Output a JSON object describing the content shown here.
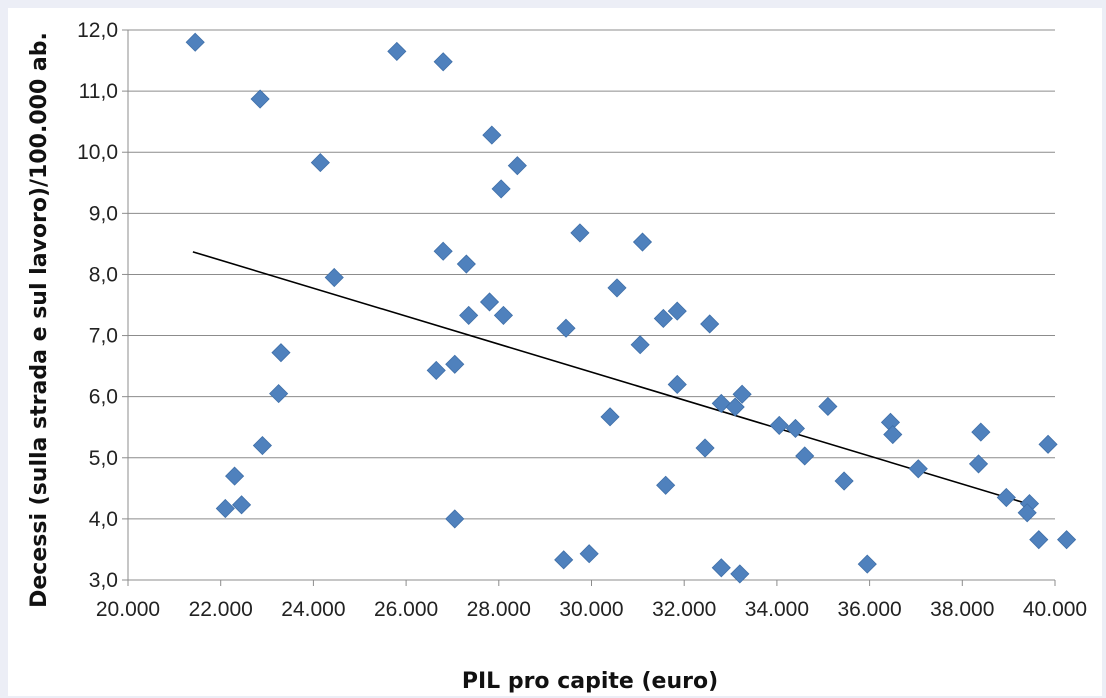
{
  "chart_data": {
    "type": "scatter",
    "xlabel": "PIL pro capite (euro)",
    "ylabel": "Decessi (sulla strada e sul lavoro)/100.000 ab.",
    "xlim": [
      20000,
      40000
    ],
    "ylim": [
      3.0,
      12.0
    ],
    "x_ticks": [
      20000,
      22000,
      24000,
      26000,
      28000,
      30000,
      32000,
      34000,
      36000,
      38000,
      40000
    ],
    "x_tick_labels": [
      "20.000",
      "22.000",
      "24.000",
      "26.000",
      "28.000",
      "30.000",
      "32.000",
      "34.000",
      "36.000",
      "38.000",
      "40.000"
    ],
    "y_ticks": [
      3,
      4,
      5,
      6,
      7,
      8,
      9,
      10,
      11,
      12
    ],
    "y_tick_labels": [
      "3,0",
      "4,0",
      "5,0",
      "6,0",
      "7,0",
      "8,0",
      "9,0",
      "10,0",
      "11,0",
      "12,0"
    ],
    "grid": "horizontal",
    "marker": "diamond",
    "marker_color": "#4f81bd",
    "trendline": {
      "x": [
        21400,
        39400
      ],
      "y": [
        8.37,
        4.25
      ],
      "color": "#000000"
    },
    "points": [
      {
        "x": 21450,
        "y": 11.8
      },
      {
        "x": 22850,
        "y": 10.87
      },
      {
        "x": 24150,
        "y": 9.83
      },
      {
        "x": 24450,
        "y": 7.95
      },
      {
        "x": 23300,
        "y": 6.72
      },
      {
        "x": 23250,
        "y": 6.05
      },
      {
        "x": 22900,
        "y": 5.2
      },
      {
        "x": 22300,
        "y": 4.7
      },
      {
        "x": 22100,
        "y": 4.17
      },
      {
        "x": 22450,
        "y": 4.23
      },
      {
        "x": 25800,
        "y": 11.65
      },
      {
        "x": 26800,
        "y": 11.48
      },
      {
        "x": 27850,
        "y": 10.28
      },
      {
        "x": 28400,
        "y": 9.78
      },
      {
        "x": 28050,
        "y": 9.4
      },
      {
        "x": 26800,
        "y": 8.38
      },
      {
        "x": 27300,
        "y": 8.17
      },
      {
        "x": 27800,
        "y": 7.55
      },
      {
        "x": 27350,
        "y": 7.33
      },
      {
        "x": 28100,
        "y": 7.33
      },
      {
        "x": 26650,
        "y": 6.43
      },
      {
        "x": 27050,
        "y": 6.53
      },
      {
        "x": 27050,
        "y": 4.0
      },
      {
        "x": 29750,
        "y": 8.68
      },
      {
        "x": 31100,
        "y": 8.53
      },
      {
        "x": 30550,
        "y": 7.78
      },
      {
        "x": 29450,
        "y": 7.12
      },
      {
        "x": 31550,
        "y": 7.28
      },
      {
        "x": 31850,
        "y": 7.4
      },
      {
        "x": 32550,
        "y": 7.19
      },
      {
        "x": 31050,
        "y": 6.85
      },
      {
        "x": 31850,
        "y": 6.2
      },
      {
        "x": 30400,
        "y": 5.67
      },
      {
        "x": 31600,
        "y": 4.55
      },
      {
        "x": 32450,
        "y": 5.16
      },
      {
        "x": 32800,
        "y": 5.89
      },
      {
        "x": 33100,
        "y": 5.83
      },
      {
        "x": 33250,
        "y": 6.04
      },
      {
        "x": 29400,
        "y": 3.33
      },
      {
        "x": 29950,
        "y": 3.43
      },
      {
        "x": 32800,
        "y": 3.2
      },
      {
        "x": 33200,
        "y": 3.1
      },
      {
        "x": 34050,
        "y": 5.53
      },
      {
        "x": 34400,
        "y": 5.48
      },
      {
        "x": 34600,
        "y": 5.03
      },
      {
        "x": 35100,
        "y": 5.84
      },
      {
        "x": 35450,
        "y": 4.62
      },
      {
        "x": 35950,
        "y": 3.26
      },
      {
        "x": 36450,
        "y": 5.58
      },
      {
        "x": 36500,
        "y": 5.38
      },
      {
        "x": 37050,
        "y": 4.82
      },
      {
        "x": 38400,
        "y": 5.42
      },
      {
        "x": 38350,
        "y": 4.9
      },
      {
        "x": 38950,
        "y": 4.35
      },
      {
        "x": 39450,
        "y": 4.25
      },
      {
        "x": 39400,
        "y": 4.1
      },
      {
        "x": 39650,
        "y": 3.66
      },
      {
        "x": 39850,
        "y": 5.22
      },
      {
        "x": 40250,
        "y": 3.66
      }
    ]
  }
}
